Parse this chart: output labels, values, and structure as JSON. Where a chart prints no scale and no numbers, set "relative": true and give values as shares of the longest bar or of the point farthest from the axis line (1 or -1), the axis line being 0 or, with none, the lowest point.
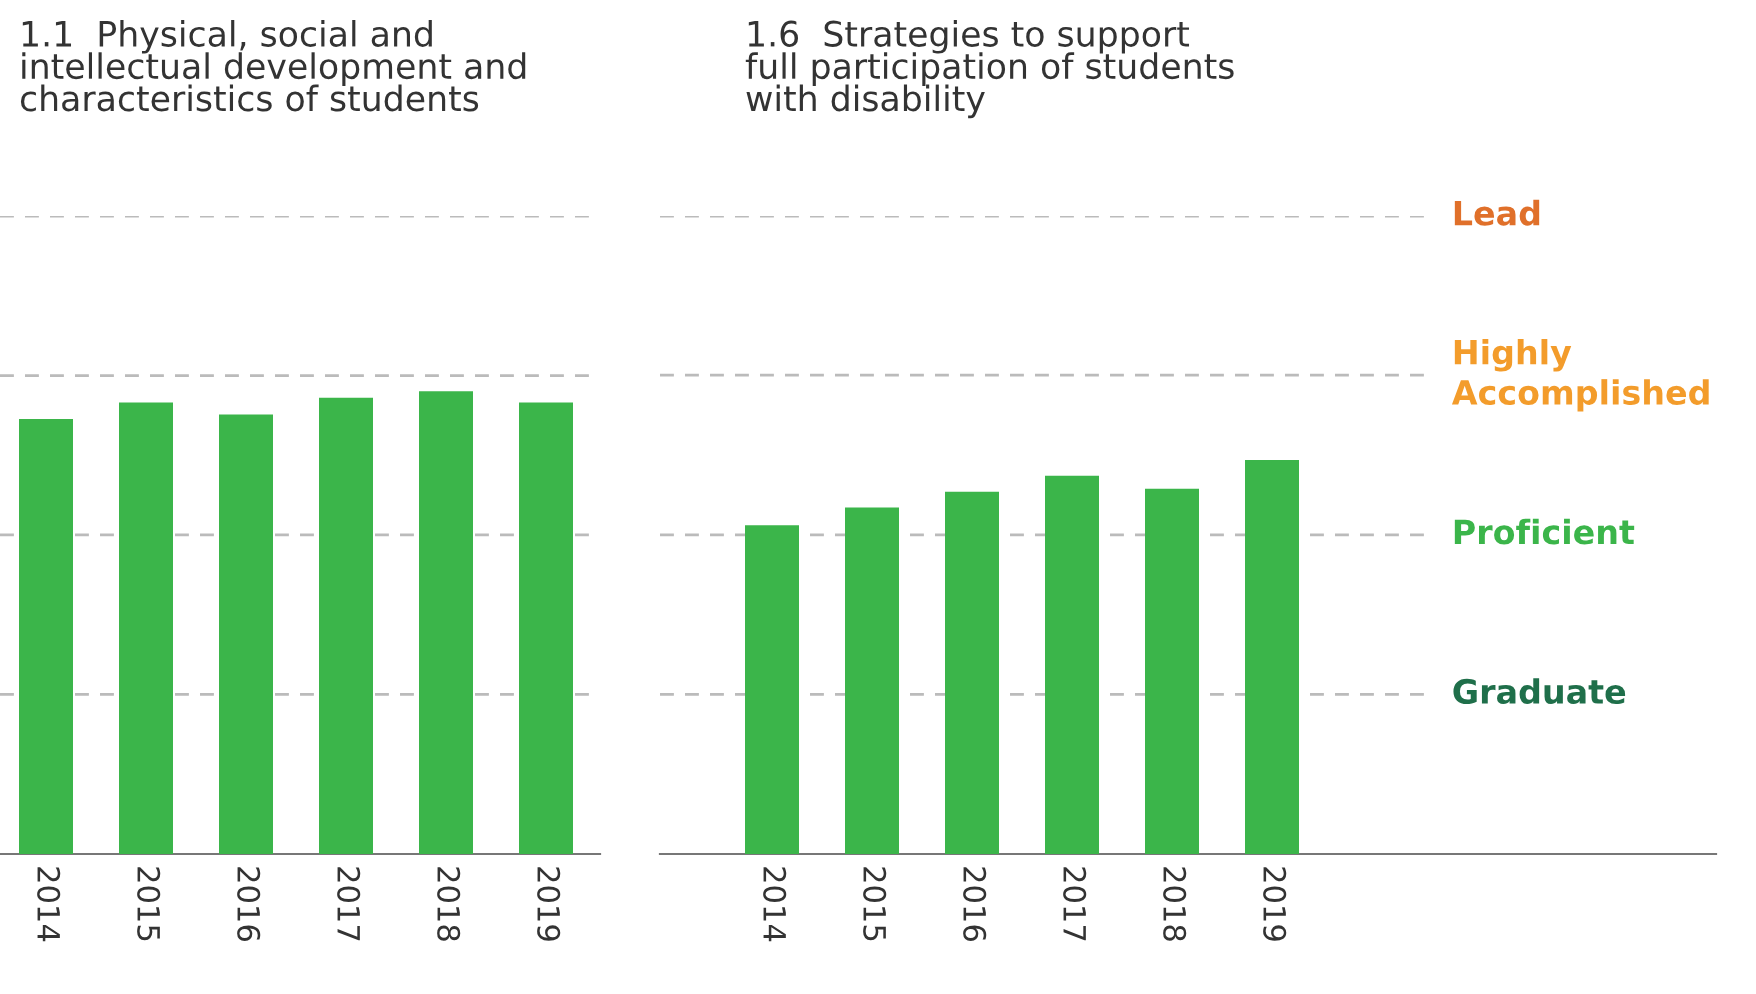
{
  "chart_data": [
    {
      "type": "bar",
      "title": "1.1  Physical, social and\nintellectual development and\ncharacteristics of students",
      "categories": [
        "2014",
        "2015",
        "2016",
        "2017",
        "2018",
        "2019"
      ],
      "values": [
        0.94,
        0.976,
        0.95,
        0.986,
        1,
        0.976
      ],
      "color": "#3bb54a",
      "relative": true,
      "ref_lines": [
        {
          "axis": "y",
          "value": 0.345,
          "line_style": "dashed"
        },
        {
          "axis": "y",
          "value": 0.69,
          "line_style": "dashed"
        },
        {
          "axis": "y",
          "value": 1.034,
          "line_style": "dashed"
        },
        {
          "axis": "y",
          "value": 1.379,
          "line_style": "dashed"
        }
      ]
    },
    {
      "type": "bar",
      "title": "1.6  Strategies to support\nfull participation of students\nwith disability",
      "categories": [
        "2014",
        "2015",
        "2016",
        "2017",
        "2018",
        "2019"
      ],
      "values": [
        0.834,
        0.879,
        0.919,
        0.96,
        0.927,
        1
      ],
      "color": "#3bb54a",
      "relative": true,
      "ref_lines": [
        {
          "axis": "y",
          "value": 0.405,
          "label": "Graduate",
          "line_style": "dashed"
        },
        {
          "axis": "y",
          "value": 0.81,
          "label": "Proficient",
          "line_style": "dashed"
        },
        {
          "axis": "y",
          "value": 1.215,
          "label": "Highly\nAccomplished",
          "line_style": "dashed"
        },
        {
          "axis": "y",
          "value": 1.619,
          "label": "Lead",
          "line_style": "dashed"
        }
      ]
    }
  ]
}
